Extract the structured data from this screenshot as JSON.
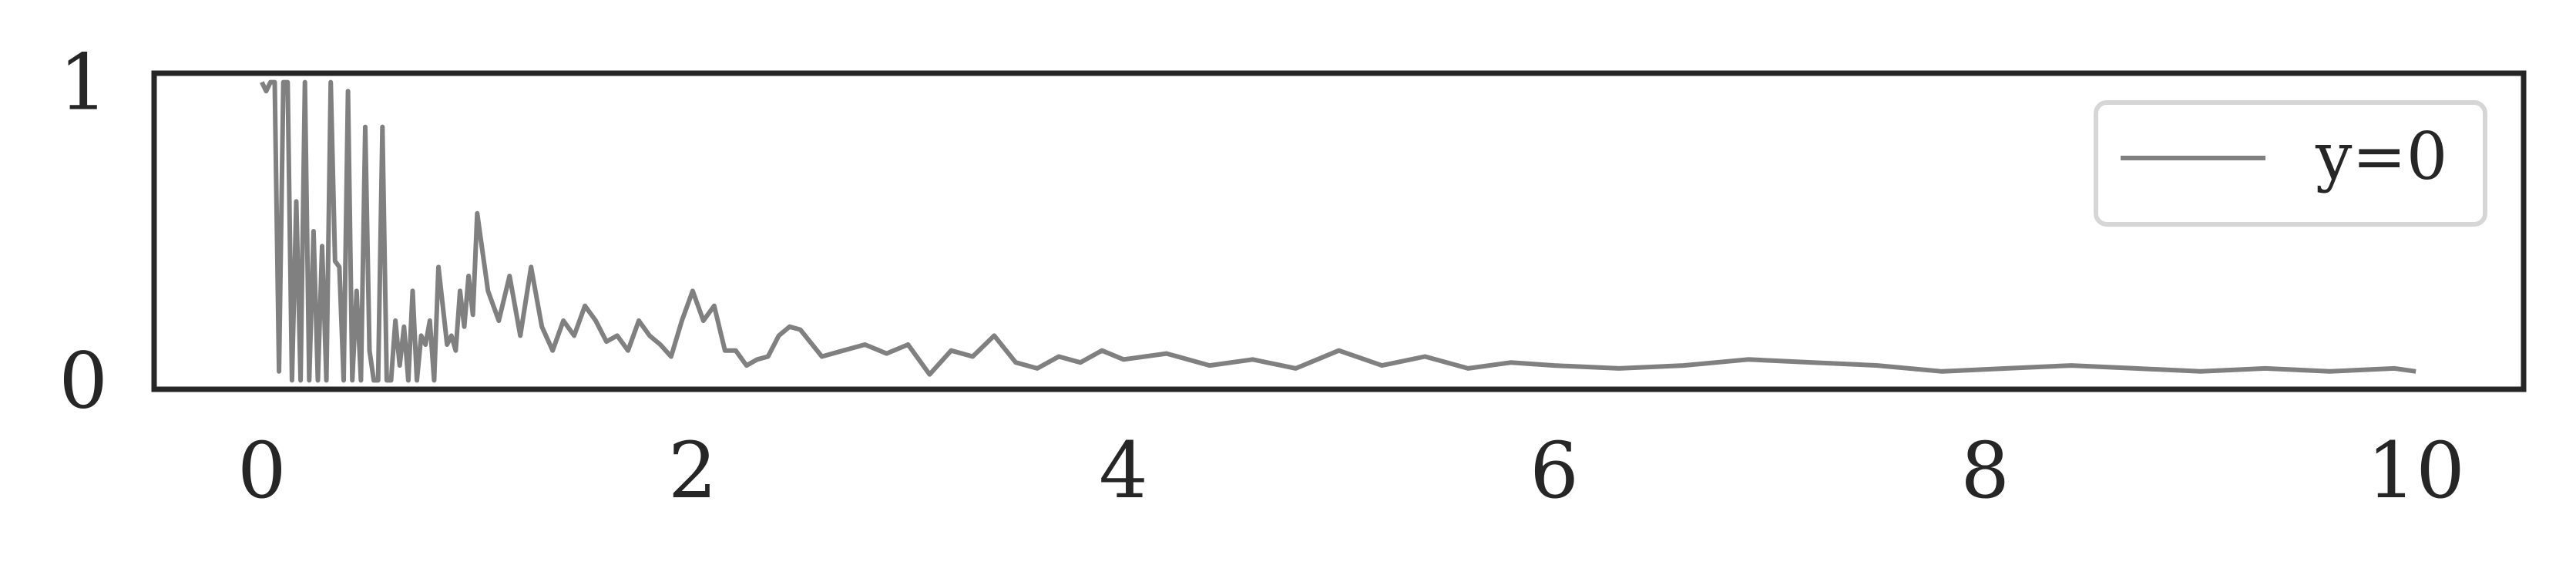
{
  "chart_data": {
    "type": "line",
    "title": "",
    "xlabel": "",
    "ylabel": "",
    "xlim": [
      -0.5,
      10.5
    ],
    "ylim": [
      -0.03,
      1.03
    ],
    "x_ticks": [
      0,
      2,
      4,
      6,
      8,
      10
    ],
    "x_tick_labels": [
      "0",
      "2",
      "4",
      "6",
      "8",
      "10"
    ],
    "y_ticks": [
      0,
      1
    ],
    "y_tick_labels": [
      "0",
      "1"
    ],
    "grid": false,
    "legend_position": "upper-right",
    "series": [
      {
        "name": "y=0",
        "color": "#808080",
        "x": [
          0.0,
          0.02,
          0.04,
          0.06,
          0.08,
          0.1,
          0.12,
          0.14,
          0.16,
          0.18,
          0.2,
          0.22,
          0.24,
          0.26,
          0.28,
          0.3,
          0.32,
          0.34,
          0.36,
          0.38,
          0.4,
          0.42,
          0.44,
          0.46,
          0.48,
          0.5,
          0.52,
          0.54,
          0.56,
          0.58,
          0.6,
          0.62,
          0.64,
          0.66,
          0.68,
          0.7,
          0.72,
          0.74,
          0.76,
          0.78,
          0.8,
          0.82,
          0.84,
          0.86,
          0.88,
          0.9,
          0.92,
          0.94,
          0.96,
          0.98,
          1.0,
          1.05,
          1.1,
          1.15,
          1.2,
          1.25,
          1.3,
          1.35,
          1.4,
          1.45,
          1.5,
          1.55,
          1.6,
          1.65,
          1.7,
          1.75,
          1.8,
          1.85,
          1.9,
          1.95,
          2.0,
          2.05,
          2.1,
          2.15,
          2.2,
          2.25,
          2.3,
          2.35,
          2.4,
          2.45,
          2.5,
          2.6,
          2.7,
          2.8,
          2.9,
          3.0,
          3.1,
          3.2,
          3.3,
          3.4,
          3.5,
          3.6,
          3.7,
          3.8,
          3.9,
          4.0,
          4.2,
          4.4,
          4.6,
          4.8,
          5.0,
          5.2,
          5.4,
          5.6,
          5.8,
          6.0,
          6.3,
          6.6,
          6.9,
          7.2,
          7.5,
          7.8,
          8.1,
          8.4,
          8.7,
          9.0,
          9.3,
          9.6,
          9.9,
          10.0
        ],
        "y": [
          1.0,
          0.97,
          1.0,
          1.0,
          0.03,
          1.0,
          1.0,
          0.0,
          0.6,
          0.0,
          1.0,
          0.0,
          0.5,
          0.0,
          0.45,
          0.0,
          1.0,
          0.4,
          0.38,
          0.0,
          0.97,
          0.0,
          0.3,
          0.0,
          0.85,
          0.1,
          0.0,
          0.0,
          0.85,
          0.0,
          0.0,
          0.2,
          0.05,
          0.18,
          0.0,
          0.3,
          0.0,
          0.15,
          0.12,
          0.2,
          0.0,
          0.38,
          0.25,
          0.12,
          0.15,
          0.1,
          0.3,
          0.18,
          0.35,
          0.22,
          0.56,
          0.3,
          0.2,
          0.35,
          0.15,
          0.38,
          0.18,
          0.1,
          0.2,
          0.15,
          0.25,
          0.2,
          0.13,
          0.15,
          0.1,
          0.2,
          0.15,
          0.12,
          0.08,
          0.2,
          0.3,
          0.2,
          0.25,
          0.1,
          0.1,
          0.05,
          0.07,
          0.08,
          0.15,
          0.18,
          0.17,
          0.08,
          0.1,
          0.12,
          0.09,
          0.12,
          0.02,
          0.1,
          0.08,
          0.15,
          0.06,
          0.04,
          0.08,
          0.06,
          0.1,
          0.07,
          0.09,
          0.05,
          0.07,
          0.04,
          0.1,
          0.05,
          0.08,
          0.04,
          0.06,
          0.05,
          0.04,
          0.05,
          0.07,
          0.06,
          0.05,
          0.03,
          0.04,
          0.05,
          0.04,
          0.03,
          0.04,
          0.03,
          0.04,
          0.03
        ]
      }
    ]
  }
}
